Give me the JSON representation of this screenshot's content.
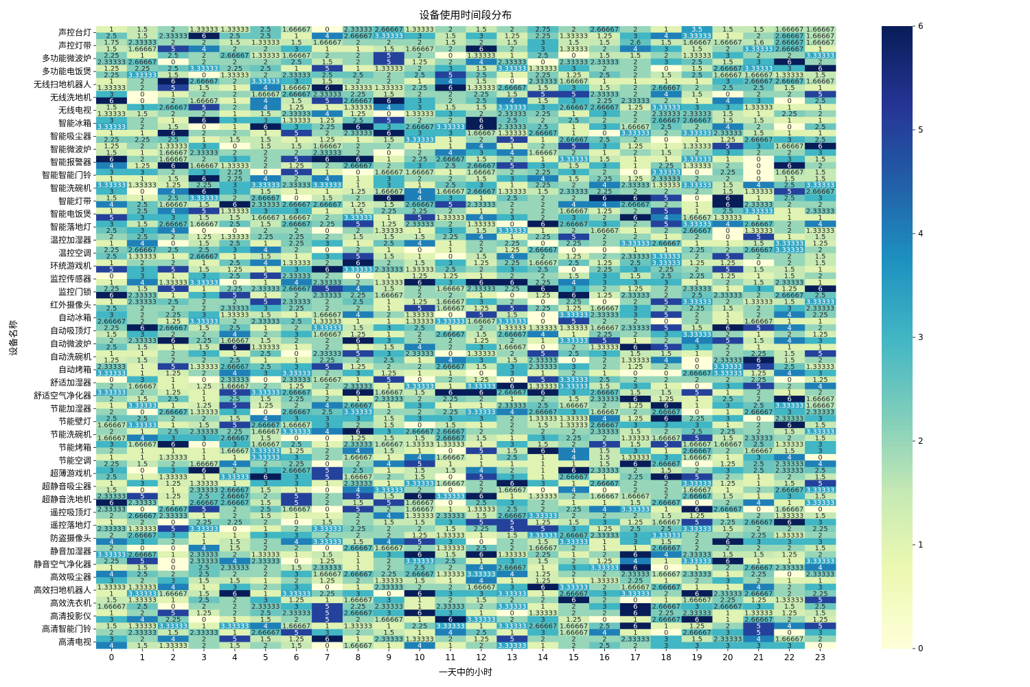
{
  "chart_data": {
    "type": "heatmap",
    "title": "设备使用时间段分布",
    "xlabel": "一天中的小时",
    "ylabel": "设备名称",
    "x_categories": [
      "0",
      "1",
      "2",
      "3",
      "4",
      "5",
      "6",
      "7",
      "8",
      "9",
      "10",
      "11",
      "12",
      "13",
      "14",
      "15",
      "16",
      "17",
      "18",
      "19",
      "20",
      "21",
      "22",
      "23"
    ],
    "y_tick_labels": [
      "声控台灯",
      "声控灯带",
      "多功能微波炉",
      "多功能电饭煲",
      "无线扫地机器人",
      "无线洗地机",
      "无线电视",
      "智能冰箱",
      "智能吸尘器",
      "智能微波炉",
      "智能报警器",
      "智能智能门铃",
      "智能洗碗机",
      "智能灯带",
      "智能电饭煲",
      "智能落地灯",
      "温控加湿器",
      "温控空调",
      "环统游戏机",
      "监控传感器",
      "监控门锁",
      "红外摄像头",
      "自动冰箱",
      "自动吸顶灯",
      "自动微波炉",
      "自动洗碗机",
      "自动烤箱",
      "舒适加湿器",
      "舒适空气净化器",
      "节能加湿器",
      "节能壁灯",
      "节能洗碗机",
      "节能烤箱",
      "节能空调",
      "超薄游戏机",
      "超静音吸尘器",
      "超静音洗地机",
      "遥控吸顶灯",
      "遥控落地灯",
      "防盗摄像头",
      "静音加湿器",
      "静音空气净化器",
      "高效吸尘器",
      "高效扫地机器人",
      "高效洗衣机",
      "高清投影仪",
      "高清智能门铃",
      "高清电视"
    ],
    "sample_row_values": {
      "声控台灯": [
        1,
        1.5,
        2,
        1.33333,
        1.33333,
        2.5,
        1.66667,
        0,
        2.33333,
        2.66667,
        1.33333,
        2,
        1.5,
        2,
        2.75,
        2,
        2.66667,
        2,
        1,
        3.5,
        1.5,
        1.5,
        1.66667,
        1.66667
      ],
      "声控灯带": [
        1.75,
        2.33333,
        2,
        2,
        1.5,
        1.33333,
        1.5,
        1.66667,
        2,
        2,
        2,
        1.5,
        2,
        1.5,
        3,
        1.5,
        1.5,
        2.6,
        1.5,
        1.66667,
        1.66667,
        1.6,
        2.66667,
        1.66667
      ]
    },
    "value_range": [
      0,
      6
    ],
    "colormap": "YlGnBu",
    "colorbar_ticks": [
      "0",
      "1",
      "2",
      "3",
      "4",
      "5",
      "6"
    ],
    "annotated_cells": true
  }
}
